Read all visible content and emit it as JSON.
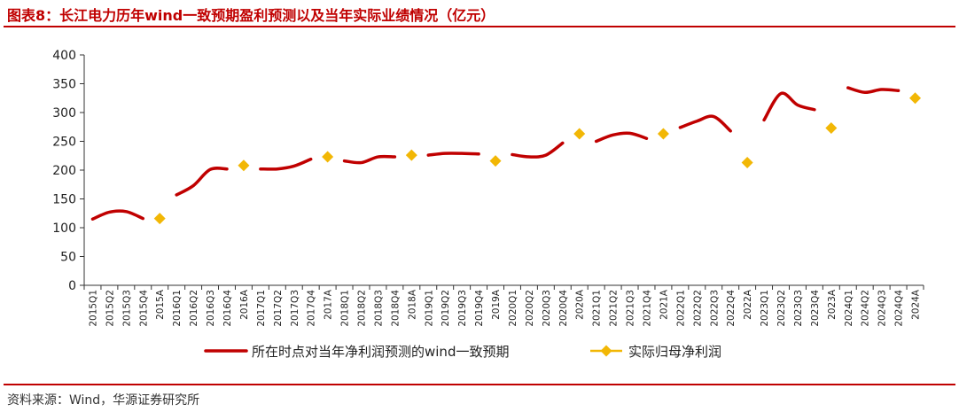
{
  "header": {
    "title": "图表8：长江电力历年wind一致预期盈利预测以及当年实际业绩情况（亿元）"
  },
  "footer": {
    "source": "资料来源：Wind，华源证券研究所"
  },
  "colors": {
    "accent": "#c00000",
    "forecast_line": "#c00000",
    "actual_marker": "#f2b705"
  },
  "chart_data": {
    "type": "line",
    "title": "图表8：长江电力历年wind一致预期盈利预测以及当年实际业绩情况（亿元）",
    "xlabel": "",
    "ylabel": "",
    "ylim": [
      0,
      400
    ],
    "yticks": [
      0,
      50,
      100,
      150,
      200,
      250,
      300,
      350,
      400
    ],
    "grid": false,
    "legend_position": "bottom",
    "categories": [
      "2015Q1",
      "2015Q2",
      "2015Q3",
      "2015Q4",
      "2015A",
      "2016Q1",
      "2016Q2",
      "2016Q3",
      "2016Q4",
      "2016A",
      "2017Q1",
      "2017Q2",
      "2017Q3",
      "2017Q4",
      "2017A",
      "2018Q1",
      "2018Q2",
      "2018Q3",
      "2018Q4",
      "2018A",
      "2019Q1",
      "2019Q2",
      "2019Q3",
      "2019Q4",
      "2019A",
      "2020Q1",
      "2020Q2",
      "2020Q3",
      "2020Q4",
      "2020A",
      "2021Q1",
      "2021Q2",
      "2021Q3",
      "2021Q4",
      "2021A",
      "2022Q1",
      "2022Q2",
      "2022Q3",
      "2022Q4",
      "2022A",
      "2023Q1",
      "2023Q2",
      "2023Q3",
      "2023Q4",
      "2023A",
      "2024Q1",
      "2024Q2",
      "2024Q3",
      "2024Q4",
      "2024A"
    ],
    "series": [
      {
        "name": "所在时点对当年净利润预测的wind一致预期",
        "type": "line",
        "values": [
          115,
          127,
          128,
          116,
          null,
          157,
          173,
          201,
          202,
          null,
          202,
          202,
          207,
          219,
          null,
          216,
          213,
          223,
          223,
          null,
          226,
          229,
          229,
          228,
          null,
          227,
          223,
          226,
          247,
          null,
          250,
          261,
          264,
          255,
          null,
          274,
          285,
          293,
          268,
          null,
          287,
          333,
          313,
          305,
          null,
          343,
          335,
          340,
          338,
          null
        ]
      },
      {
        "name": "实际归母净利润",
        "type": "scatter",
        "values": [
          null,
          null,
          null,
          null,
          116,
          null,
          null,
          null,
          null,
          208,
          null,
          null,
          null,
          null,
          223,
          null,
          null,
          null,
          null,
          226,
          null,
          null,
          null,
          null,
          216,
          null,
          null,
          null,
          null,
          263,
          null,
          null,
          null,
          null,
          263,
          null,
          null,
          null,
          null,
          213,
          null,
          null,
          null,
          null,
          273,
          null,
          null,
          null,
          null,
          325
        ]
      }
    ]
  }
}
